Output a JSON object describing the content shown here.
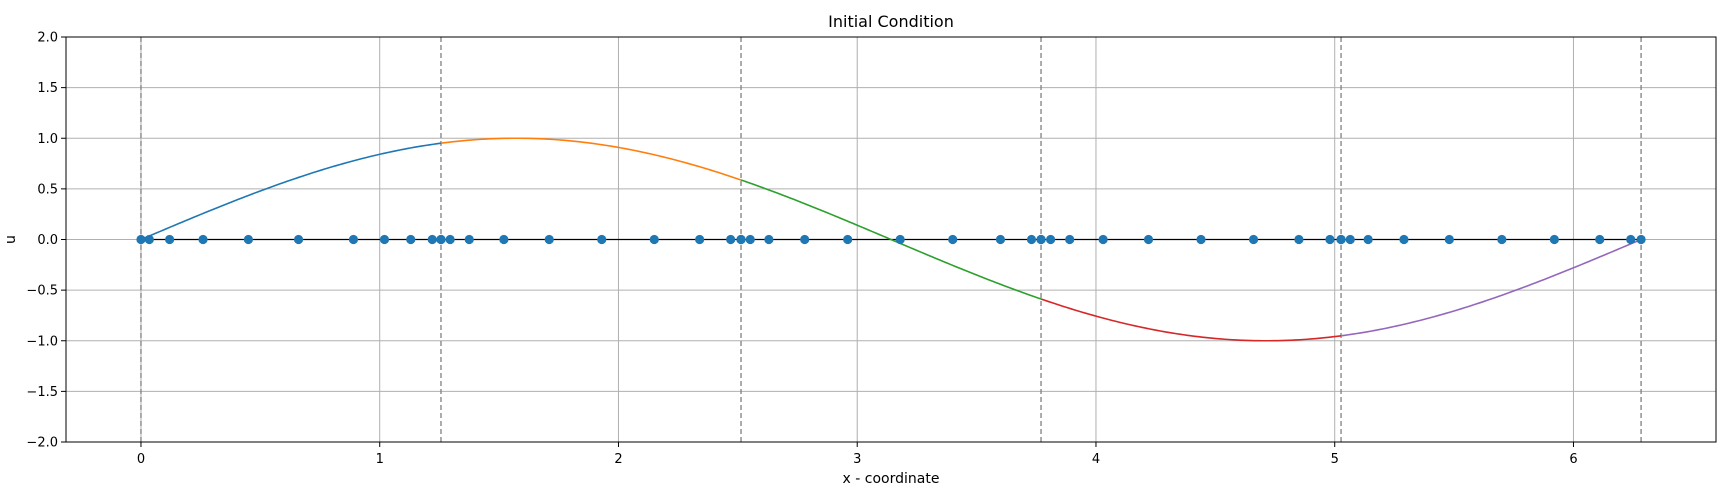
{
  "chart_data": {
    "type": "line",
    "title": "Initial Condition",
    "xlabel": "x - coordinate",
    "ylabel": "u",
    "xlim": [
      -0.314,
      6.597
    ],
    "ylim": [
      -2.0,
      2.0
    ],
    "x_ticks": [
      0,
      1,
      2,
      3,
      4,
      5,
      6
    ],
    "y_ticks": [
      -2.0,
      -1.5,
      -1.0,
      -0.5,
      0.0,
      0.5,
      1.0,
      1.5,
      2.0
    ],
    "x_tick_labels": [
      "0",
      "1",
      "2",
      "3",
      "4",
      "5",
      "6"
    ],
    "y_tick_labels": [
      "−2.0",
      "−1.5",
      "−1.0",
      "−0.5",
      "0.0",
      "0.5",
      "1.0",
      "1.5",
      "2.0"
    ],
    "grid": true,
    "element_boundaries": [
      0.0,
      1.2566,
      2.5133,
      3.7699,
      5.0265,
      6.2832
    ],
    "series": [
      {
        "function": "sin",
        "x_range": [
          0.0,
          1.2566
        ],
        "color": "#1f77b4"
      },
      {
        "function": "sin",
        "x_range": [
          1.2566,
          2.5133
        ],
        "color": "#ff7f0e"
      },
      {
        "function": "sin",
        "x_range": [
          2.5133,
          3.7699
        ],
        "color": "#2ca02c"
      },
      {
        "function": "sin",
        "x_range": [
          3.7699,
          5.0265
        ],
        "color": "#d62728"
      },
      {
        "function": "sin",
        "x_range": [
          5.0265,
          6.2832
        ],
        "color": "#9467bd"
      }
    ],
    "nodes": {
      "color": "#1f77b4",
      "y": 0.0,
      "x": [
        0.0,
        0.035,
        0.12,
        0.26,
        0.45,
        0.66,
        0.89,
        1.02,
        1.13,
        1.22,
        1.2566,
        1.2566,
        1.295,
        1.375,
        1.52,
        1.71,
        1.93,
        2.15,
        2.34,
        2.47,
        2.5133,
        2.5133,
        2.552,
        2.63,
        2.78,
        2.96,
        3.18,
        3.4,
        3.6,
        3.73,
        3.7699,
        3.7699,
        3.81,
        3.89,
        4.03,
        4.22,
        4.44,
        4.66,
        4.85,
        4.98,
        5.0265,
        5.0265,
        5.065,
        5.14,
        5.29,
        5.48,
        5.7,
        5.92,
        6.11,
        6.24,
        6.2832
      ]
    },
    "baseline": {
      "y": 0.0,
      "x_range": [
        0.0,
        6.2832
      ],
      "color": "#000000"
    },
    "boundary_line_color": "#808080",
    "grid_color": "#b0b0b0"
  }
}
